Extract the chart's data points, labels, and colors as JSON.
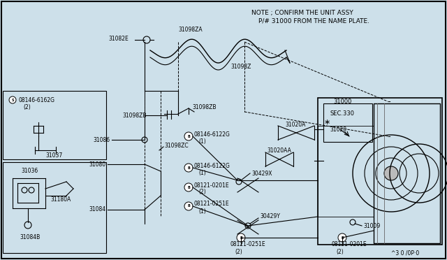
{
  "bg_color": "#cde0ea",
  "border_color": "#000000",
  "note_line1": "NOTE ; CONFIRM THE UNIT ASSY",
  "note_line2": "P/# 31000 FROM THE NAME PLATE.",
  "diagram_id": "^3 0 /0P·0",
  "font_size": 6.0,
  "lw": 0.8
}
